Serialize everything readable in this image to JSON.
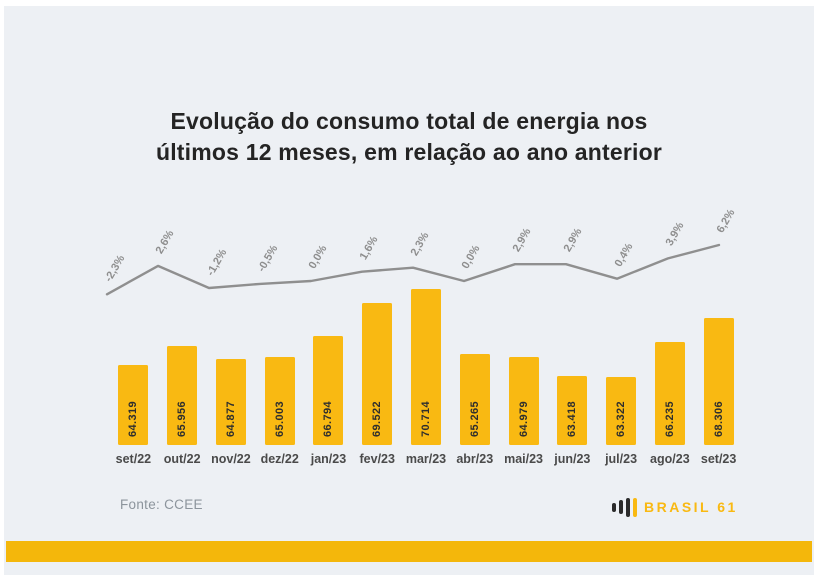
{
  "title": {
    "line1": "Evolução do consumo total de energia nos",
    "line2": "últimos 12 meses, em relação ao ano anterior"
  },
  "chart_data": {
    "type": "bar",
    "title": "Evolução do consumo total de energia nos últimos 12 meses, em relação ao ano anterior",
    "categories": [
      "set/22",
      "out/22",
      "nov/22",
      "dez/22",
      "jan/23",
      "fev/23",
      "mar/23",
      "abr/23",
      "mai/23",
      "jun/23",
      "jul/23",
      "ago/23",
      "set/23"
    ],
    "series": [
      {
        "name": "bars",
        "type": "bar",
        "values": [
          64319,
          65956,
          64877,
          65003,
          66794,
          69522,
          70714,
          65265,
          64979,
          63418,
          63322,
          66235,
          68306
        ],
        "labels": [
          "64.319",
          "65.956",
          "64.877",
          "65.003",
          "66.794",
          "69.522",
          "70.714",
          "65.265",
          "64.979",
          "63.418",
          "63.322",
          "66.235",
          "68.306"
        ]
      },
      {
        "name": "line-percent",
        "type": "line",
        "values": [
          -2.3,
          2.6,
          -1.2,
          -0.5,
          0.0,
          1.6,
          2.3,
          0.0,
          2.9,
          2.9,
          0.4,
          3.9,
          6.2
        ],
        "labels": [
          "-2,3%",
          "2,6%",
          "-1,2%",
          "-0,5%",
          "0,0%",
          "1,6%",
          "2,3%",
          "0,0%",
          "2,9%",
          "2,9%",
          "0,4%",
          "3,9%",
          "6,2%"
        ]
      }
    ],
    "grid": false,
    "legend": false,
    "value_axis_visible": false
  },
  "footer": {
    "source": "Fonte: CCEE",
    "brand": "BRASIL 61"
  },
  "colors": {
    "background": "#EDF0F4",
    "bar": "#F9B912",
    "line": "#8F8F8F",
    "percent_label": "#8E8E8E",
    "bar_label": "#2E2E2E",
    "category_label": "#4A4A4A",
    "title": "#242424",
    "source": "#8C949C",
    "accent_strip": "#F4B70B",
    "brand_text": "#F9B912",
    "brand_icon": "#2B2B2B"
  }
}
